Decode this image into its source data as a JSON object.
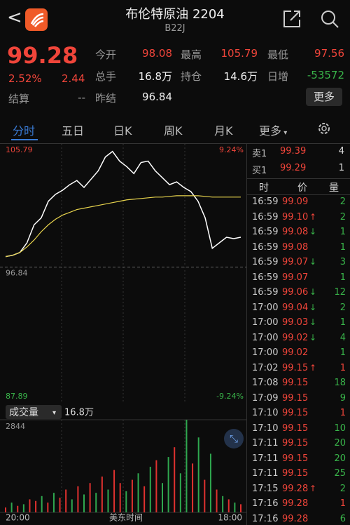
{
  "header": {
    "title": "布伦特原油 2204",
    "code": "B22J"
  },
  "quote": {
    "price": "99.28",
    "change_percent": "2.52%",
    "change": "2.44",
    "settle_label": "结算",
    "settle": "--",
    "more": "更多",
    "stats": [
      {
        "label": "今开",
        "value": "98.08",
        "color": "red"
      },
      {
        "label": "最高",
        "value": "105.79",
        "color": "red"
      },
      {
        "label": "最低",
        "value": "97.56",
        "color": "red"
      },
      {
        "label": "总手",
        "value": "16.8万",
        "color": "white"
      },
      {
        "label": "持仓",
        "value": "14.6万",
        "color": "white"
      },
      {
        "label": "日增",
        "value": "-53572",
        "color": "green"
      },
      {
        "label": "昨结",
        "value": "96.84",
        "color": "white"
      }
    ]
  },
  "tabs": [
    "分时",
    "五日",
    "日K",
    "周K",
    "月K",
    "更多"
  ],
  "chart_data": {
    "type": "line",
    "ylim": [
      87.89,
      105.79
    ],
    "yticks": [
      {
        "value": 105.79,
        "label": "105.79"
      },
      {
        "value": 96.84,
        "label": "96.84"
      },
      {
        "value": 87.89,
        "label": "87.89"
      }
    ],
    "pct_labels": [
      "9.24%",
      "-9.24%"
    ],
    "series": [
      {
        "name": "price",
        "color": "#ffffff",
        "values": [
          98.0,
          98.1,
          98.3,
          99.0,
          100.3,
          100.8,
          102.0,
          102.5,
          102.8,
          103.2,
          103.5,
          103.0,
          103.6,
          104.2,
          105.2,
          105.6,
          104.9,
          104.5,
          104.0,
          104.8,
          104.9,
          104.2,
          103.7,
          103.2,
          103.4,
          103.0,
          102.7,
          102.0,
          100.8,
          98.6,
          99.0,
          99.4,
          99.3,
          99.4
        ]
      },
      {
        "name": "average",
        "color": "#e8d44d",
        "values": [
          98.0,
          98.1,
          98.3,
          98.7,
          99.2,
          99.8,
          100.3,
          100.7,
          101.0,
          101.2,
          101.4,
          101.5,
          101.6,
          101.7,
          101.8,
          101.9,
          102.0,
          102.1,
          102.15,
          102.2,
          102.25,
          102.3,
          102.3,
          102.35,
          102.4,
          102.4,
          102.4,
          102.4,
          102.35,
          102.3,
          102.3,
          102.3,
          102.3,
          102.3
        ]
      }
    ],
    "volume": {
      "label": "成交量",
      "total": "16.8万",
      "ylim": [
        0,
        2844
      ],
      "yticks": [
        2844
      ],
      "values": [
        150,
        300,
        200,
        250,
        400,
        350,
        500,
        300,
        600,
        450,
        700,
        400,
        800,
        550,
        900,
        600,
        1100,
        700,
        1300,
        900,
        650,
        1000,
        1200,
        800,
        1400,
        1600,
        900,
        1700,
        2000,
        1200,
        2844,
        1500,
        2300,
        1000,
        1800,
        700,
        500,
        400,
        300,
        250
      ],
      "colors": [
        "#e0312f",
        "#2fa84f",
        "#e0312f",
        "#2fa84f",
        "#e0312f",
        "#e0312f",
        "#2fa84f",
        "#e0312f",
        "#2fa84f",
        "#e0312f",
        "#e0312f",
        "#2fa84f",
        "#e0312f",
        "#2fa84f",
        "#e0312f",
        "#2fa84f",
        "#e0312f",
        "#2fa84f",
        "#e0312f",
        "#e0312f",
        "#2fa84f",
        "#e0312f",
        "#2fa84f",
        "#e0312f",
        "#2fa84f",
        "#e0312f",
        "#2fa84f",
        "#2fa84f",
        "#e0312f",
        "#2fa84f",
        "#2fa84f",
        "#e0312f",
        "#2fa84f",
        "#e0312f",
        "#2fa84f",
        "#e0312f",
        "#2fa84f",
        "#e0312f",
        "#2fa84f",
        "#e0312f"
      ]
    },
    "x_labels": [
      "20:00",
      "美东时间",
      "18:00"
    ]
  },
  "book": [
    {
      "label": "卖1",
      "price": "99.39",
      "qty": "4"
    },
    {
      "label": "买1",
      "price": "99.29",
      "qty": "1"
    }
  ],
  "trades": {
    "headers": [
      "时",
      "价",
      "量"
    ],
    "rows": [
      {
        "time": "16:59",
        "price": "99.09",
        "arrow": "",
        "qty": "2",
        "qty_color": "#39b54a"
      },
      {
        "time": "16:59",
        "price": "99.10",
        "arrow": "↑",
        "qty": "2",
        "qty_color": "#39b54a"
      },
      {
        "time": "16:59",
        "price": "99.08",
        "arrow": "↓",
        "qty": "1",
        "qty_color": "#39b54a"
      },
      {
        "time": "16:59",
        "price": "99.08",
        "arrow": "",
        "qty": "1",
        "qty_color": "#39b54a"
      },
      {
        "time": "16:59",
        "price": "99.07",
        "arrow": "↓",
        "qty": "3",
        "qty_color": "#39b54a"
      },
      {
        "time": "16:59",
        "price": "99.07",
        "arrow": "",
        "qty": "1",
        "qty_color": "#39b54a"
      },
      {
        "time": "16:59",
        "price": "99.06",
        "arrow": "↓",
        "qty": "12",
        "qty_color": "#39b54a"
      },
      {
        "time": "17:00",
        "price": "99.04",
        "arrow": "↓",
        "qty": "2",
        "qty_color": "#39b54a"
      },
      {
        "time": "17:00",
        "price": "99.03",
        "arrow": "↓",
        "qty": "1",
        "qty_color": "#39b54a"
      },
      {
        "time": "17:00",
        "price": "99.02",
        "arrow": "↓",
        "qty": "4",
        "qty_color": "#39b54a"
      },
      {
        "time": "17:00",
        "price": "99.02",
        "arrow": "",
        "qty": "1",
        "qty_color": "#39b54a"
      },
      {
        "time": "17:02",
        "price": "99.15",
        "arrow": "↑",
        "qty": "1",
        "qty_color": "#f0453a"
      },
      {
        "time": "17:08",
        "price": "99.15",
        "arrow": "",
        "qty": "18",
        "qty_color": "#39b54a"
      },
      {
        "time": "17:09",
        "price": "99.15",
        "arrow": "",
        "qty": "9",
        "qty_color": "#39b54a"
      },
      {
        "time": "17:10",
        "price": "99.15",
        "arrow": "",
        "qty": "1",
        "qty_color": "#f0453a"
      },
      {
        "time": "17:10",
        "price": "99.15",
        "arrow": "",
        "qty": "10",
        "qty_color": "#39b54a"
      },
      {
        "time": "17:11",
        "price": "99.15",
        "arrow": "",
        "qty": "20",
        "qty_color": "#39b54a"
      },
      {
        "time": "17:11",
        "price": "99.15",
        "arrow": "",
        "qty": "20",
        "qty_color": "#39b54a"
      },
      {
        "time": "17:11",
        "price": "99.15",
        "arrow": "",
        "qty": "25",
        "qty_color": "#39b54a"
      },
      {
        "time": "17:15",
        "price": "99.28",
        "arrow": "↑",
        "qty": "2",
        "qty_color": "#39b54a"
      },
      {
        "time": "17:16",
        "price": "99.28",
        "arrow": "",
        "qty": "1",
        "qty_color": "#f0453a"
      },
      {
        "time": "17:16",
        "price": "99.28",
        "arrow": "",
        "qty": "6",
        "qty_color": "#39b54a"
      }
    ]
  }
}
